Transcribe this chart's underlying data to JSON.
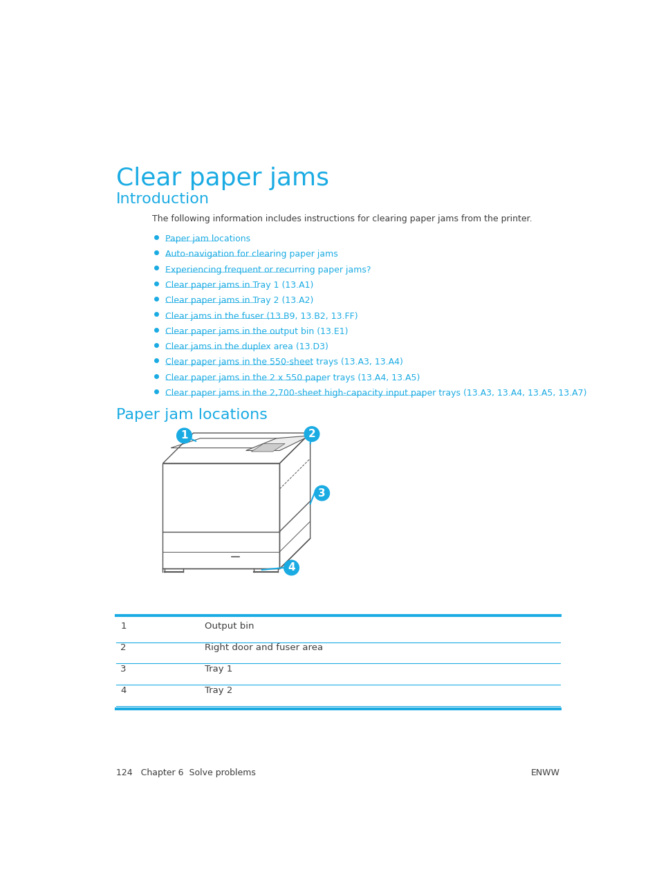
{
  "title": "Clear paper jams",
  "section1_title": "Introduction",
  "intro_text": "The following information includes instructions for clearing paper jams from the printer.",
  "bullet_links": [
    "Paper jam locations",
    "Auto-navigation for clearing paper jams",
    "Experiencing frequent or recurring paper jams?",
    "Clear paper jams in Tray 1 (13.A1)",
    "Clear paper jams in Tray 2 (13.A2)",
    "Clear jams in the fuser (13.B9, 13.B2, 13.FF)",
    "Clear paper jams in the output bin (13.E1)",
    "Clear jams in the duplex area (13.D3)",
    "Clear paper jams in the 550-sheet trays (13.A3, 13.A4)",
    "Clear paper jams in the 2 x 550 paper trays (13.A4, 13.A5)",
    "Clear paper jams in the 2,700-sheet high-capacity input paper trays (13.A3, 13.A4, 13.A5, 13.A7)"
  ],
  "section2_title": "Paper jam locations",
  "table_rows": [
    [
      "1",
      "Output bin"
    ],
    [
      "2",
      "Right door and fuser area"
    ],
    [
      "3",
      "Tray 1"
    ],
    [
      "4",
      "Tray 2"
    ]
  ],
  "footer_left": "124   Chapter 6  Solve problems",
  "footer_right": "ENWW",
  "title_color": "#1AABE3",
  "section_color": "#1AABE3",
  "link_color": "#1AABE3",
  "table_line_color": "#1AABE3",
  "text_color": "#3C3C3C",
  "bullet_color": "#1AABE3",
  "printer_edge_color": "#555555",
  "bg_color": "#FFFFFF"
}
